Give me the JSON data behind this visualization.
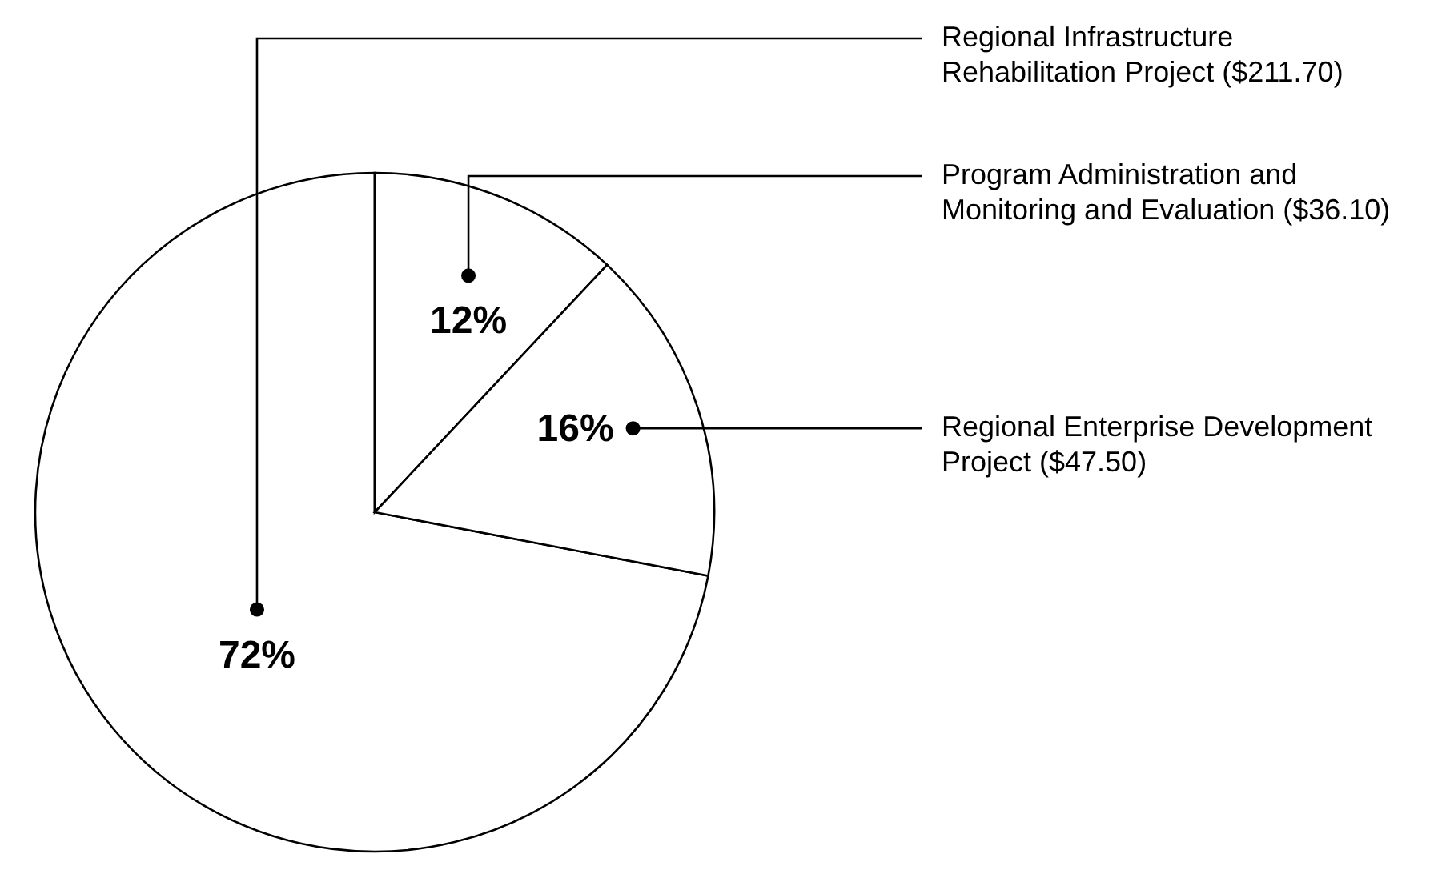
{
  "chart_data": {
    "type": "pie",
    "categories": [
      "Regional Infrastructure Rehabilitation Project ($211.70)",
      "Program Administration and Monitoring and Evaluation ($36.10)",
      "Regional Enterprise Development Project ($47.50)"
    ],
    "values": [
      72,
      12,
      16
    ],
    "value_labels": [
      "72%",
      "12%",
      "16%"
    ],
    "colors": [
      "#ffffff",
      "#ffffff",
      "#ffffff"
    ]
  }
}
